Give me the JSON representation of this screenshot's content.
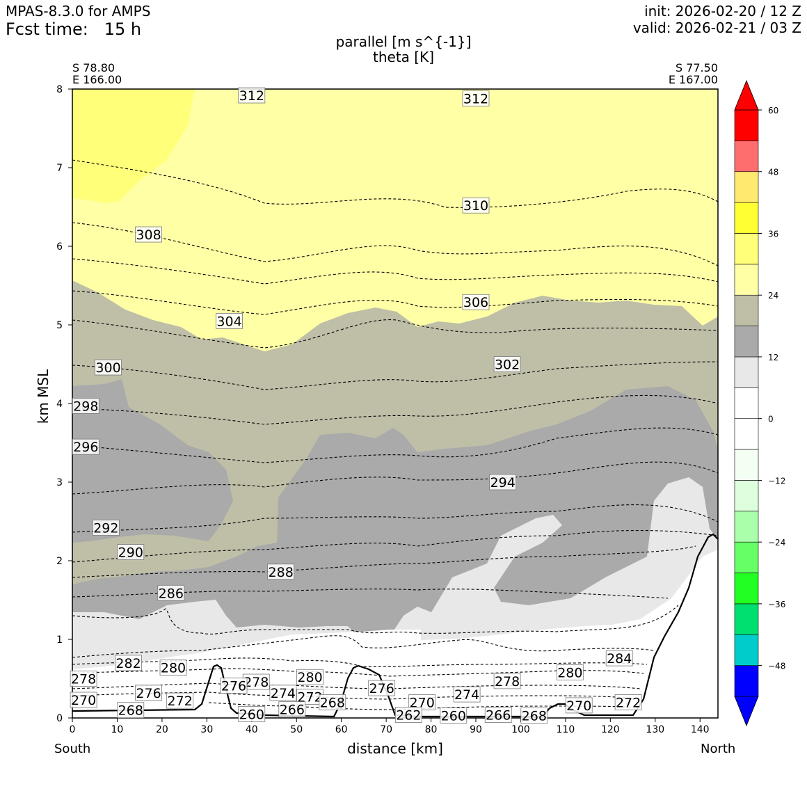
{
  "header": {
    "model": "MPAS-8.3.0 for AMPS",
    "fcst_time": "Fcst time:   15 h",
    "init": "init: 2026-02-20 / 12 Z",
    "valid": "valid: 2026-02-21 / 03 Z"
  },
  "chart_data": {
    "type": "cross-section",
    "title": "parallel [m s^{-1}]",
    "subtitle": "theta [K]",
    "xlabel": "distance [km]",
    "ylabel": "km MSL",
    "xlim": [
      0,
      144
    ],
    "ylim": [
      0,
      8
    ],
    "x_ticks": [
      "0",
      "10",
      "20",
      "30",
      "40",
      "50",
      "60",
      "70",
      "80",
      "90",
      "100",
      "110",
      "120",
      "130",
      "140"
    ],
    "y_ticks": [
      "0",
      "1",
      "2",
      "3",
      "4",
      "5",
      "6",
      "7",
      "8"
    ],
    "left_end": {
      "lat": "S 78.80",
      "lon": "E 166.00",
      "label": "South"
    },
    "right_end": {
      "lat": "S 77.50",
      "lon": "E 167.00",
      "label": "North"
    },
    "colorbar": {
      "levels": [
        -54,
        -48,
        -42,
        -36,
        -30,
        -24,
        -18,
        -12,
        -6,
        0,
        6,
        12,
        18,
        24,
        30,
        36,
        42,
        48,
        54,
        60
      ],
      "tick_labels": [
        "60",
        "48",
        "36",
        "24",
        "12",
        "0",
        "−12",
        "−24",
        "−36",
        "−48"
      ],
      "tick_values": [
        60,
        48,
        36,
        24,
        12,
        0,
        -12,
        -24,
        -36,
        -48
      ],
      "colors": [
        "#0000ff",
        "#00cccc",
        "#00e070",
        "#22ff22",
        "#66ff66",
        "#aaffaa",
        "#ddffdd",
        "#f2fff2",
        "#ffffff",
        "#ffffff",
        "#e8e8e8",
        "#aaaaaa",
        "#bfbfa8",
        "#ffffa6",
        "#ffff7a",
        "#ffff33",
        "#ffe96e",
        "#ff6e6e",
        "#ff0000"
      ],
      "under_color": "#0000ff",
      "over_color": "#ff0000"
    },
    "theta_contour_labels": [
      {
        "value": "312",
        "x": 40,
        "y": 7.92
      },
      {
        "value": "312",
        "x": 90,
        "y": 7.88
      },
      {
        "value": "310",
        "x": 90,
        "y": 6.52
      },
      {
        "value": "308",
        "x": 17,
        "y": 6.15
      },
      {
        "value": "306",
        "x": 90,
        "y": 5.29
      },
      {
        "value": "304",
        "x": 35,
        "y": 5.05
      },
      {
        "value": "302",
        "x": 97,
        "y": 4.5
      },
      {
        "value": "300",
        "x": 8,
        "y": 4.46
      },
      {
        "value": "298",
        "x": 3,
        "y": 3.97
      },
      {
        "value": "296",
        "x": 3,
        "y": 3.45
      },
      {
        "value": "294",
        "x": 96,
        "y": 3.0
      },
      {
        "value": "292",
        "x": 7.5,
        "y": 2.42
      },
      {
        "value": "290",
        "x": 13,
        "y": 2.11
      },
      {
        "value": "288",
        "x": 46.5,
        "y": 1.86
      },
      {
        "value": "286",
        "x": 22,
        "y": 1.59
      },
      {
        "value": "284",
        "x": 122,
        "y": 0.76
      },
      {
        "value": "282",
        "x": 12.5,
        "y": 0.7
      },
      {
        "value": "280",
        "x": 22.5,
        "y": 0.64
      },
      {
        "value": "280",
        "x": 53,
        "y": 0.52
      },
      {
        "value": "280",
        "x": 111,
        "y": 0.58
      },
      {
        "value": "278",
        "x": 2.5,
        "y": 0.5
      },
      {
        "value": "278",
        "x": 41,
        "y": 0.46
      },
      {
        "value": "278",
        "x": 97,
        "y": 0.47
      },
      {
        "value": "276",
        "x": 17,
        "y": 0.32
      },
      {
        "value": "276",
        "x": 36,
        "y": 0.41
      },
      {
        "value": "276",
        "x": 69,
        "y": 0.38
      },
      {
        "value": "274",
        "x": 47,
        "y": 0.32
      },
      {
        "value": "274",
        "x": 88,
        "y": 0.3
      },
      {
        "value": "272",
        "x": 24,
        "y": 0.22
      },
      {
        "value": "272",
        "x": 53,
        "y": 0.27
      },
      {
        "value": "272",
        "x": 124,
        "y": 0.2
      },
      {
        "value": "270",
        "x": 2.5,
        "y": 0.23
      },
      {
        "value": "270",
        "x": 78,
        "y": 0.2
      },
      {
        "value": "270",
        "x": 113,
        "y": 0.16
      },
      {
        "value": "268",
        "x": 13,
        "y": 0.1
      },
      {
        "value": "268",
        "x": 58,
        "y": 0.2
      },
      {
        "value": "268",
        "x": 103,
        "y": 0.03
      },
      {
        "value": "266",
        "x": 49,
        "y": 0.11
      },
      {
        "value": "266",
        "x": 95,
        "y": 0.04
      },
      {
        "value": "262",
        "x": 75,
        "y": 0.04
      },
      {
        "value": "260",
        "x": 40,
        "y": 0.05
      },
      {
        "value": "260",
        "x": 85,
        "y": 0.03
      }
    ]
  }
}
